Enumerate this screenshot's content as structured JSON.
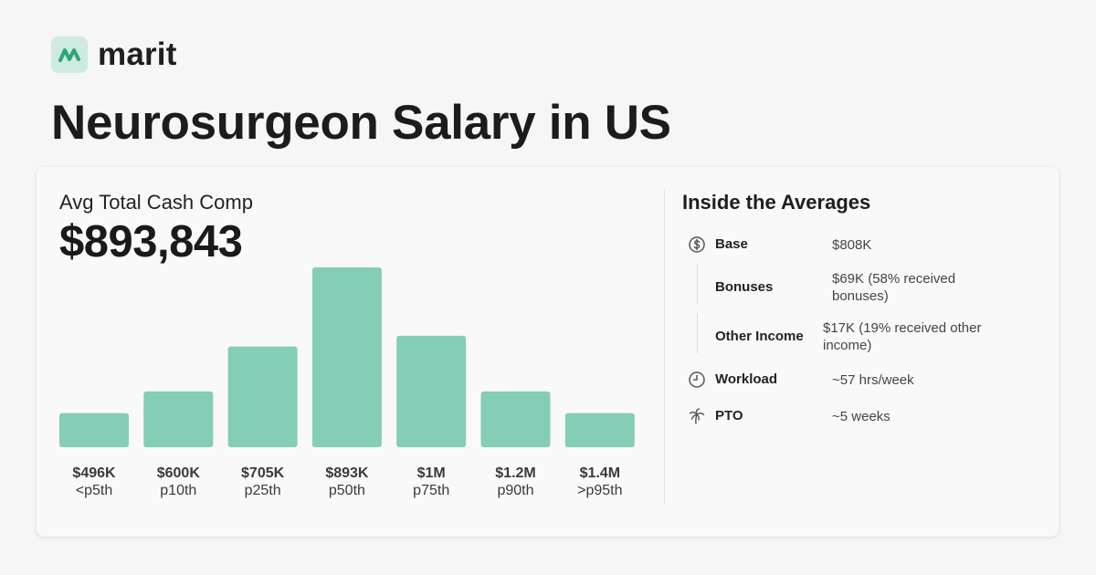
{
  "brand": {
    "name": "marit",
    "accent": "#2fa57b",
    "logo_bg": "#cdebdf"
  },
  "page_title": "Neurosurgeon Salary in US",
  "summary": {
    "label": "Avg Total Cash Comp",
    "value": "$893,843"
  },
  "chart_data": {
    "type": "bar",
    "title": "",
    "xlabel": "",
    "ylabel": "",
    "bar_color": "#84cdb6",
    "categories": [
      "<p5th",
      "p10th",
      "p25th",
      "p50th",
      "p75th",
      "p90th",
      ">p95th"
    ],
    "value_labels": [
      "$496K",
      "$600K",
      "$705K",
      "$893K",
      "$1M",
      "$1.2M",
      "$1.4M"
    ],
    "values": [
      19,
      31,
      56,
      100,
      62,
      31,
      19
    ],
    "ylim": [
      0,
      100
    ],
    "grid": false,
    "legend": "none"
  },
  "inside": {
    "title": "Inside the Averages",
    "rows": [
      {
        "icon": "dollar-circle-icon",
        "label": "Base",
        "value": "$808K"
      },
      {
        "icon": "",
        "label": "Bonuses",
        "value": "$69K (58% received bonuses)"
      },
      {
        "icon": "",
        "label": "Other Income",
        "value": "$17K (19% received other income)"
      },
      {
        "icon": "clock-icon",
        "label": "Workload",
        "value": "~57 hrs/week"
      },
      {
        "icon": "palm-tree-icon",
        "label": "PTO",
        "value": "~5 weeks"
      }
    ]
  }
}
